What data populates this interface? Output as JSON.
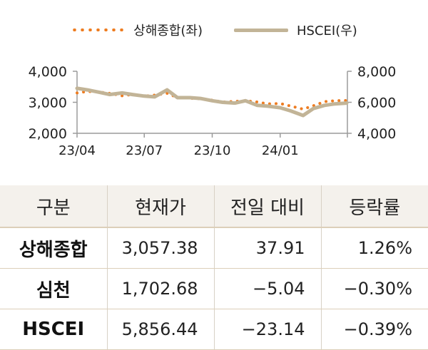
{
  "legend": {
    "series1": "상해종합(좌)",
    "series2": "HSCEI(우)"
  },
  "chart_data": {
    "type": "line",
    "x_ticks": [
      "23/04",
      "23/07",
      "23/10",
      "24/01"
    ],
    "left_axis": {
      "ticks": [
        "4,000",
        "3,000",
        "2,000"
      ],
      "range": [
        2000,
        4000
      ]
    },
    "right_axis": {
      "ticks": [
        "8,000",
        "6,000",
        "4,000"
      ],
      "range": [
        4000,
        8000
      ]
    },
    "x_range": [
      "2023-04-01",
      "2024-04-01"
    ],
    "series": [
      {
        "name": "상해종합(좌)",
        "axis": "left",
        "color": "#EE7D22",
        "points": [
          [
            "2023-04-01",
            3300
          ],
          [
            "2023-04-15",
            3350
          ],
          [
            "2023-05-01",
            3330
          ],
          [
            "2023-05-15",
            3290
          ],
          [
            "2023-06-01",
            3210
          ],
          [
            "2023-06-15",
            3250
          ],
          [
            "2023-07-01",
            3200
          ],
          [
            "2023-07-15",
            3230
          ],
          [
            "2023-08-01",
            3290
          ],
          [
            "2023-08-15",
            3150
          ],
          [
            "2023-09-01",
            3130
          ],
          [
            "2023-09-15",
            3110
          ],
          [
            "2023-10-01",
            3070
          ],
          [
            "2023-10-15",
            3010
          ],
          [
            "2023-11-01",
            3030
          ],
          [
            "2023-11-15",
            3050
          ],
          [
            "2023-12-01",
            3010
          ],
          [
            "2023-12-15",
            2950
          ],
          [
            "2024-01-01",
            2960
          ],
          [
            "2024-01-15",
            2880
          ],
          [
            "2024-02-01",
            2780
          ],
          [
            "2024-02-15",
            2890
          ],
          [
            "2024-03-01",
            3020
          ],
          [
            "2024-03-15",
            3050
          ],
          [
            "2024-03-31",
            3060
          ]
        ]
      },
      {
        "name": "HSCEI(우)",
        "axis": "right",
        "color": "#C2B497",
        "points": [
          [
            "2023-04-01",
            6900
          ],
          [
            "2023-04-15",
            6800
          ],
          [
            "2023-05-01",
            6650
          ],
          [
            "2023-05-15",
            6500
          ],
          [
            "2023-06-01",
            6600
          ],
          [
            "2023-06-15",
            6500
          ],
          [
            "2023-07-01",
            6400
          ],
          [
            "2023-07-15",
            6350
          ],
          [
            "2023-08-01",
            6800
          ],
          [
            "2023-08-15",
            6300
          ],
          [
            "2023-09-01",
            6300
          ],
          [
            "2023-09-15",
            6250
          ],
          [
            "2023-10-01",
            6100
          ],
          [
            "2023-10-15",
            6000
          ],
          [
            "2023-11-01",
            5950
          ],
          [
            "2023-11-15",
            6100
          ],
          [
            "2023-12-01",
            5800
          ],
          [
            "2023-12-15",
            5750
          ],
          [
            "2024-01-01",
            5650
          ],
          [
            "2024-01-15",
            5450
          ],
          [
            "2024-02-01",
            5150
          ],
          [
            "2024-02-15",
            5600
          ],
          [
            "2024-03-01",
            5800
          ],
          [
            "2024-03-15",
            5900
          ],
          [
            "2024-03-31",
            5950
          ]
        ]
      }
    ]
  },
  "table": {
    "headers": [
      "구분",
      "현재가",
      "전일 대비",
      "등락률"
    ],
    "rows": [
      [
        "상해종합",
        "3,057.38",
        "37.91",
        "1.26%"
      ],
      [
        "심천",
        "1,702.68",
        "−5.04",
        "−0.30%"
      ],
      [
        "HSCEI",
        "5,856.44",
        "−23.14",
        "−0.39%"
      ]
    ]
  }
}
